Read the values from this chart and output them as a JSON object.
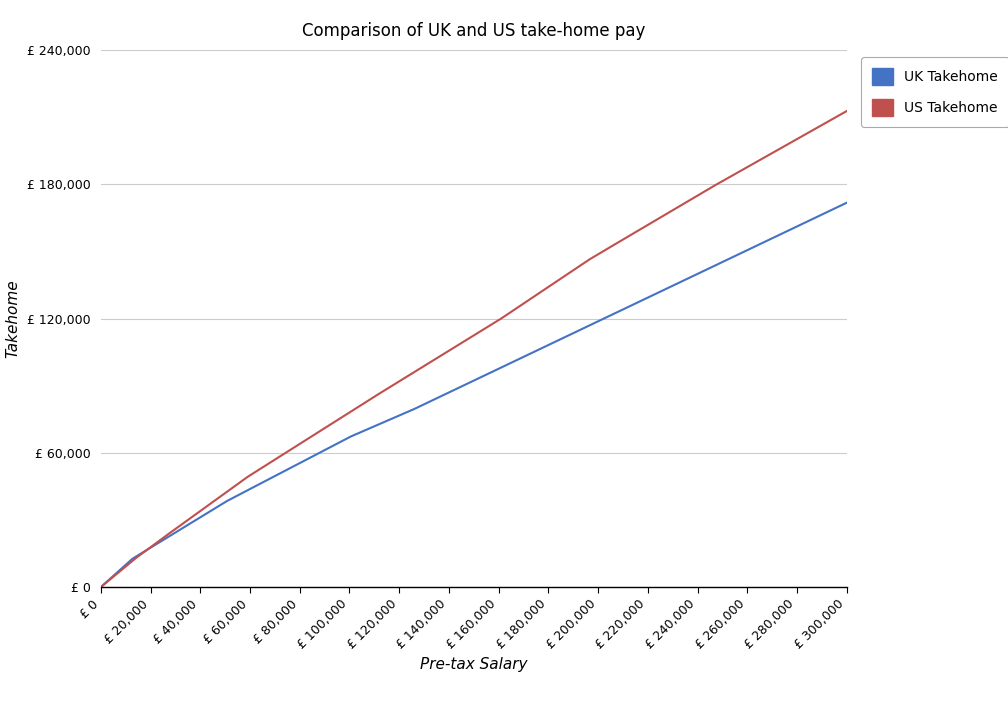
{
  "title": "Comparison of UK and US take-home pay",
  "xlabel": "Pre-tax Salary",
  "ylabel": "Takehome",
  "uk_color": "#4472C4",
  "us_color": "#C0504D",
  "uk_label": "UK Takehome",
  "us_label": "US Takehome",
  "x_min": 0,
  "x_max": 300000,
  "y_min": 0,
  "y_max": 240000,
  "x_tick_step": 20000,
  "y_tick_step": 60000,
  "background_color": "#FFFFFF",
  "grid_color": "#CCCCCC",
  "figsize": [
    10.08,
    7.16
  ],
  "dpi": 100
}
